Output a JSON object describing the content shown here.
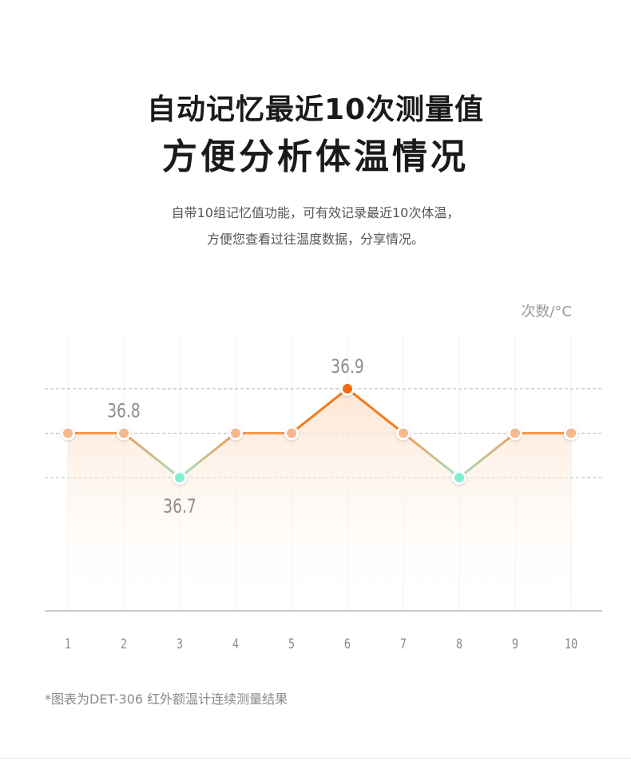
{
  "header": {
    "title_line1": "自动记忆最近10次测量值",
    "title_line2": "方便分析体温情况",
    "desc_line1": "自带10组记忆值功能，可有效记录最近10次体温，",
    "desc_line2": "方便您查看过往温度数据，分享情况。"
  },
  "chart_data": {
    "type": "line",
    "unit_label": "次数/°C",
    "x": [
      1,
      2,
      3,
      4,
      5,
      6,
      7,
      8,
      9,
      10
    ],
    "values": [
      36.8,
      36.8,
      36.7,
      36.8,
      36.8,
      36.9,
      36.8,
      36.7,
      36.8,
      36.8
    ],
    "ylim": [
      36.4,
      36.95
    ],
    "reference_lines": [
      36.9,
      36.8,
      36.7
    ],
    "annotations": [
      {
        "x": 2,
        "label": "36.8",
        "position": "above"
      },
      {
        "x": 3,
        "label": "36.7",
        "position": "below"
      },
      {
        "x": 6,
        "label": "36.9",
        "position": "above"
      }
    ],
    "grid": true,
    "colors": {
      "line_main": "#f39a4d",
      "line_peak": "#f47a1a",
      "line_low": "#9ee3c4",
      "point_normal": "#f8b88e",
      "point_high": "#f26b0f",
      "point_low": "#7ff0d4",
      "fill": "#fde5d2"
    }
  },
  "footnote": "*图表为DET-306 红外额温计连续测量结果"
}
